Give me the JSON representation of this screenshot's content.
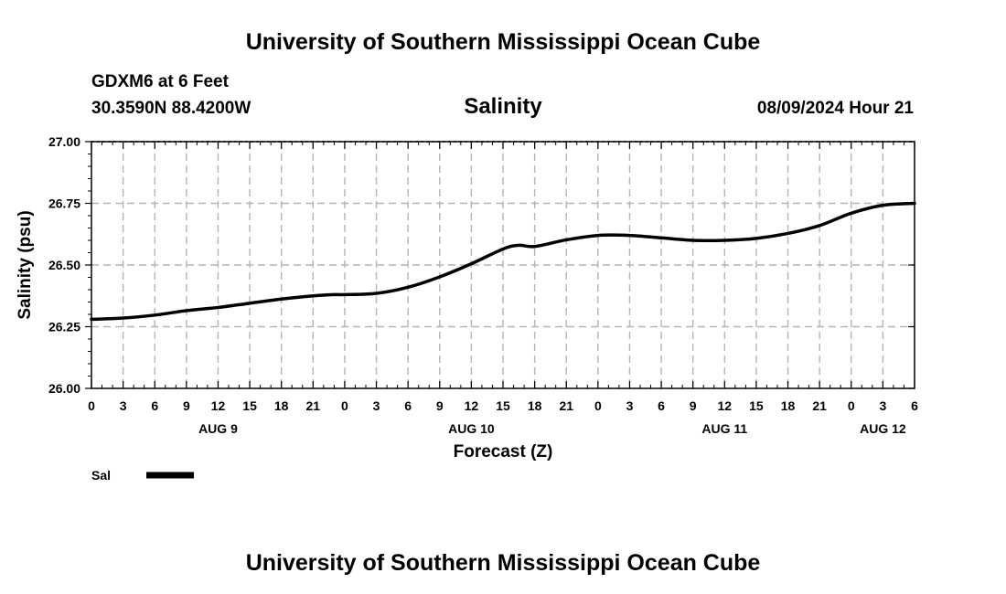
{
  "header": {
    "main_title": "University of Southern Mississippi Ocean Cube",
    "station": "GDXM6 at 6 Feet",
    "location": "30.3590N  88.4200W",
    "plot_title": "Salinity",
    "timestamp": "08/09/2024 Hour 21"
  },
  "footer": {
    "main_title": "University of Southern Mississippi Ocean Cube"
  },
  "chart_data": {
    "type": "line",
    "title": "Salinity",
    "xlabel": "Forecast (Z)",
    "ylabel": "Salinity (psu)",
    "ylim": [
      26.0,
      27.0
    ],
    "yticks": [
      26.0,
      26.25,
      26.5,
      26.75,
      27.0
    ],
    "ytick_labels": [
      "26.00",
      "26.25",
      "26.50",
      "26.75",
      "27.00"
    ],
    "xlim": [
      0,
      78
    ],
    "x_units": "hours from AUG 9 00Z",
    "xtick_labels": [
      "0",
      "3",
      "6",
      "9",
      "12",
      "15",
      "18",
      "21",
      "0",
      "3",
      "6",
      "9",
      "12",
      "15",
      "18",
      "21",
      "0",
      "3",
      "6",
      "9",
      "12",
      "15",
      "18",
      "21",
      "0",
      "3",
      "6"
    ],
    "date_labels": [
      {
        "label": "AUG 9",
        "hour": 12
      },
      {
        "label": "AUG 10",
        "hour": 36
      },
      {
        "label": "AUG 11",
        "hour": 60
      },
      {
        "label": "AUG 12",
        "hour": 75
      }
    ],
    "grid": true,
    "series": [
      {
        "name": "Sal",
        "color": "#000000",
        "x": [
          0,
          3,
          6,
          9,
          12,
          15,
          18,
          21,
          23,
          24,
          27,
          30,
          33,
          36,
          39,
          40.5,
          42,
          45,
          48,
          51,
          54,
          57,
          60,
          63,
          66,
          69,
          72,
          75,
          78
        ],
        "values": [
          26.28,
          26.285,
          26.297,
          26.315,
          26.328,
          26.345,
          26.362,
          26.375,
          26.38,
          26.38,
          26.385,
          26.41,
          26.452,
          26.505,
          26.565,
          26.58,
          26.575,
          26.602,
          26.62,
          26.62,
          26.61,
          26.6,
          26.6,
          26.608,
          26.628,
          26.66,
          26.71,
          26.742,
          26.75
        ]
      }
    ],
    "legend": {
      "label": "Sal",
      "placement": "bottom-left"
    }
  }
}
